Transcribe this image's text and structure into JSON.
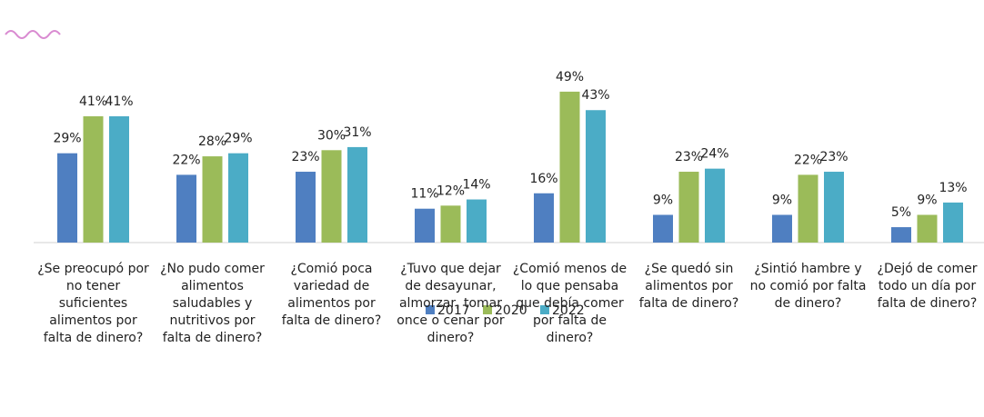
{
  "chart_data": {
    "type": "bar",
    "categories": [
      "¿Se preocupó por no tener suficientes alimentos por falta de dinero?",
      "¿No pudo comer alimentos saludables y nutritivos por falta de dinero?",
      "¿Comió poca variedad de alimentos por falta de dinero?",
      "¿Tuvo que dejar de desayunar, almorzar, tomar once o cenar por dinero?",
      "¿Comió menos de lo que pensaba que debía comer por falta de dinero?",
      "¿Se quedó sin alimentos por falta de dinero?",
      "¿Sintió hambre y no comió por falta de dinero?",
      "¿Dejó de comer todo un día por falta de dinero?"
    ],
    "series": [
      {
        "name": "2017",
        "color": "#4f7fc1",
        "values": [
          29,
          22,
          23,
          11,
          16,
          9,
          9,
          5
        ],
        "value_labels": [
          "29%",
          "22%",
          "23%",
          "11%",
          "16%",
          "9%",
          "9%",
          "5%"
        ]
      },
      {
        "name": "2020",
        "color": "#9bbb59",
        "values": [
          41,
          28,
          30,
          12,
          49,
          23,
          22,
          9
        ],
        "value_labels": [
          "41%",
          "28%",
          "30%",
          "12%",
          "49%",
          "23%",
          "22%",
          "9%"
        ]
      },
      {
        "name": "2022",
        "color": "#4bacc6",
        "values": [
          41,
          29,
          31,
          14,
          43,
          24,
          23,
          13
        ],
        "value_labels": [
          "41%",
          "29%",
          "31%",
          "14%",
          "43%",
          "24%",
          "23%",
          "13%"
        ]
      }
    ],
    "legend": "bottom"
  }
}
